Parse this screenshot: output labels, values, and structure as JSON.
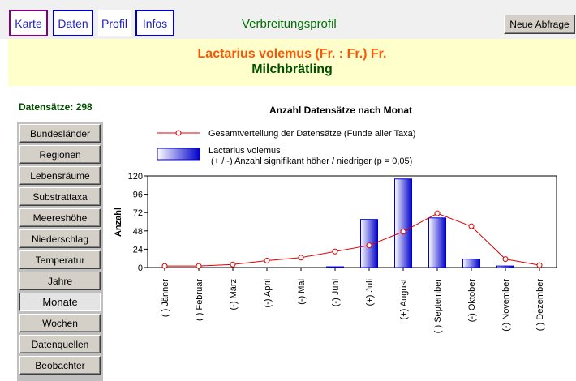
{
  "nav": {
    "tabs": [
      {
        "label": "Karte"
      },
      {
        "label": "Daten"
      },
      {
        "label": "Profil"
      },
      {
        "label": "Infos"
      }
    ],
    "page_heading": "Verbreitungsprofil",
    "new_query_label": "Neue Abfrage"
  },
  "banner": {
    "species": "Lactarius volemus (Fr. : Fr.) Fr.",
    "common_name": "Milchbrätling"
  },
  "record_count": "Datensätze: 298",
  "sidebar": {
    "items": [
      {
        "label": "Bundesländer"
      },
      {
        "label": "Regionen"
      },
      {
        "label": "Lebensräume"
      },
      {
        "label": "Substrattaxa"
      },
      {
        "label": "Meereshöhe"
      },
      {
        "label": "Niederschlag"
      },
      {
        "label": "Temperatur"
      },
      {
        "label": "Jahre"
      },
      {
        "label": "Monate"
      },
      {
        "label": "Wochen"
      },
      {
        "label": "Datenquellen"
      },
      {
        "label": "Beobachter"
      }
    ],
    "selected": "Monate"
  },
  "chart_data": {
    "type": "bar",
    "title": "Anzahl Datensätze nach Monat",
    "ylabel": "Anzahl",
    "ylim": [
      0,
      120
    ],
    "yticks": [
      0,
      24,
      48,
      72,
      96,
      120
    ],
    "categories": [
      "( ) Jänner",
      "( ) Februar",
      "(-) März",
      "(-) April",
      "(-) Mai",
      "(-) Juni",
      "(+) Juli",
      "(+) August",
      "( ) September",
      "(-) Oktober",
      "(-) November",
      "( ) Dezember"
    ],
    "series": [
      {
        "name": "Lactarius volemus",
        "type": "bar",
        "values": [
          0,
          0,
          0,
          0,
          0,
          1,
          63,
          116,
          65,
          11,
          2,
          0
        ],
        "color": "#0000cc"
      },
      {
        "name": "Gesamtverteilung der Datensätze (Funde aller Taxa)",
        "type": "line",
        "values": [
          2,
          2,
          4,
          9,
          13,
          21,
          29,
          47,
          71,
          54,
          11,
          3
        ],
        "color": "#dd0000"
      }
    ],
    "legend": {
      "line_label": "Gesamtverteilung der Datensätze (Funde aller Taxa)",
      "bar_label": "Lactarius volemus",
      "bar_note": " (+ / -) Anzahl signifikant höher / niedriger (p = 0,05)"
    }
  }
}
